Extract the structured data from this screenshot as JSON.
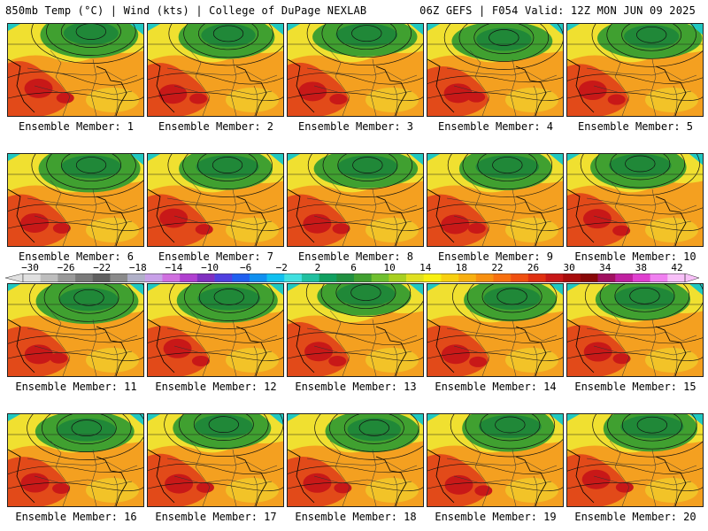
{
  "header": {
    "left": "850mb Temp (°C) | Wind (kts) | College of DuPage NEXLAB",
    "right": "06Z GEFS | F054 Valid: 12Z MON JUN 09 2025"
  },
  "caption_prefix": "Ensemble Member: ",
  "members": [
    1,
    2,
    3,
    4,
    5,
    6,
    7,
    8,
    9,
    10,
    11,
    12,
    13,
    14,
    15,
    16,
    17,
    18,
    19,
    20
  ],
  "colorbar": {
    "labels": [
      "-30",
      "-26",
      "-22",
      "-18",
      "-14",
      "-10",
      "-6",
      "-2",
      "2",
      "6",
      "10",
      "14",
      "18",
      "22",
      "26",
      "30",
      "34",
      "38",
      "42"
    ],
    "colors": [
      "#e0e0e0",
      "#bdbdbd",
      "#9a9a9a",
      "#7a7a7a",
      "#606060",
      "#8a8a8a",
      "#b0b0c8",
      "#c8a0e8",
      "#d070e0",
      "#b040d0",
      "#8030c0",
      "#5040e0",
      "#2060f0",
      "#1090f0",
      "#10c0f0",
      "#40e0e0",
      "#20c0a0",
      "#10a060",
      "#209040",
      "#40a030",
      "#70c030",
      "#a8d020",
      "#e0e020",
      "#f8f010",
      "#f8d010",
      "#f8b010",
      "#f89010",
      "#f87010",
      "#f05010",
      "#e03010",
      "#c81818",
      "#a80c0c",
      "#880808",
      "#a01060",
      "#c020a0",
      "#e040d0",
      "#f080f0",
      "#f8c0f8"
    ]
  },
  "colors": {
    "warm": "#f4a020",
    "hot": "#e04018",
    "veryhot": "#c81818",
    "yellow": "#f0e030",
    "green": "#40a030",
    "darkgreen": "#208838",
    "cyan": "#20c8c0"
  }
}
